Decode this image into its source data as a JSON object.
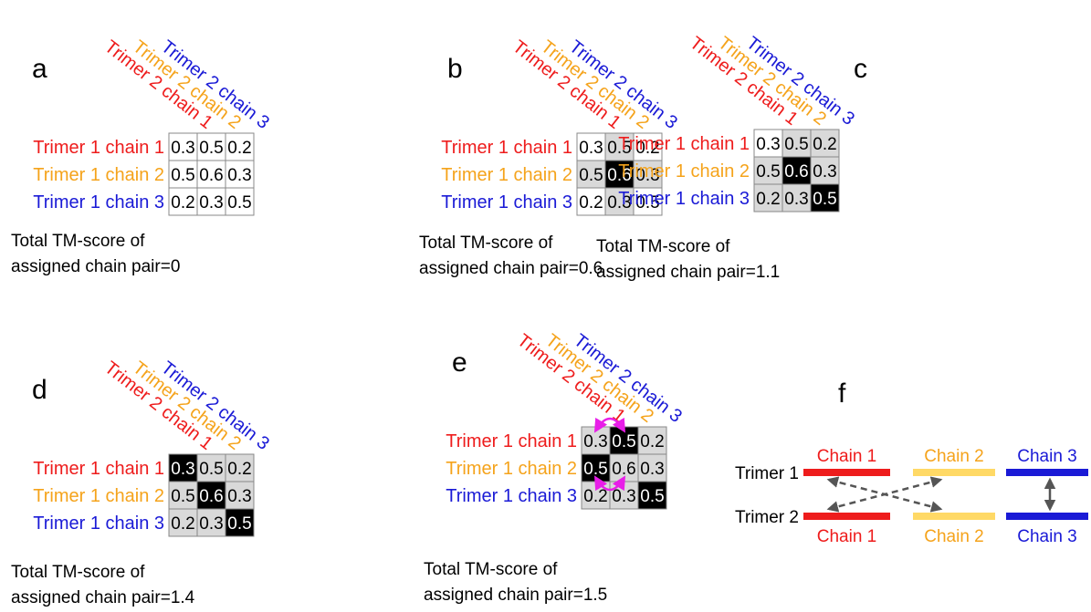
{
  "colors": [
    "#ee1c1c",
    "#f5a31b",
    "#1a1ad6"
  ],
  "panels": [
    {
      "label": "a",
      "column_headers": [
        "Trimer 2 chain 1",
        "Trimer 2 chain 2",
        "Trimer 2 chain 3"
      ],
      "row_labels": [
        "Trimer 1 chain 1",
        "Trimer 1 chain 2",
        "Trimer 1 chain 3"
      ],
      "cells": [
        [
          0.3,
          0.5,
          0.2
        ],
        [
          0.5,
          0.6,
          0.3
        ],
        [
          0.2,
          0.3,
          0.5
        ]
      ],
      "cell_colors": [
        [
          "#ffffff",
          "#ffffff",
          "#ffffff"
        ],
        [
          "#ffffff",
          "#ffffff",
          "#ffffff"
        ],
        [
          "#ffffff",
          "#ffffff",
          "#ffffff"
        ]
      ],
      "caption": [
        "Total TM-score of",
        "assigned chain pair=0"
      ]
    },
    {
      "label": "b",
      "column_headers": [
        "Trimer 2 chain 1",
        "Trimer 2 chain 2",
        "Trimer 2 chain 3"
      ],
      "row_labels": [
        "Trimer 1 chain 1",
        "Trimer 1 chain 2",
        "Trimer 1 chain 3"
      ],
      "cells": [
        [
          0.3,
          0.5,
          0.2
        ],
        [
          0.5,
          0.6,
          0.3
        ],
        [
          0.2,
          0.3,
          0.5
        ]
      ],
      "cell_colors": [
        [
          "#ffffff",
          "#d9d9d9",
          "#ffffff"
        ],
        [
          "#d9d9d9",
          "#000000",
          "#d9d9d9"
        ],
        [
          "#ffffff",
          "#d9d9d9",
          "#ffffff"
        ]
      ],
      "caption": [
        "Total TM-score of",
        "assigned chain pair=0.6"
      ]
    },
    {
      "label": "c",
      "column_headers": [
        "Trimer 2 chain 1",
        "Trimer 2 chain 2",
        "Trimer 2 chain 3"
      ],
      "row_labels": [
        "Trimer 1 chain 1",
        "Trimer 1 chain 2",
        "Trimer 1 chain 3"
      ],
      "cells": [
        [
          0.3,
          0.5,
          0.2
        ],
        [
          0.5,
          0.6,
          0.3
        ],
        [
          0.2,
          0.3,
          0.5
        ]
      ],
      "cell_colors": [
        [
          "#ffffff",
          "#d9d9d9",
          "#d9d9d9"
        ],
        [
          "#d9d9d9",
          "#000000",
          "#d9d9d9"
        ],
        [
          "#d9d9d9",
          "#d9d9d9",
          "#000000"
        ]
      ],
      "caption": [
        "Total TM-score of",
        "assigned chain pair=1.1"
      ]
    },
    {
      "label": "d",
      "column_headers": [
        "Trimer 2 chain 1",
        "Trimer 2 chain 2",
        "Trimer 2 chain 3"
      ],
      "row_labels": [
        "Trimer 1 chain 1",
        "Trimer 1 chain 2",
        "Trimer 1 chain 3"
      ],
      "cells": [
        [
          0.3,
          0.5,
          0.2
        ],
        [
          0.5,
          0.6,
          0.3
        ],
        [
          0.2,
          0.3,
          0.5
        ]
      ],
      "cell_colors": [
        [
          "#000000",
          "#d9d9d9",
          "#d9d9d9"
        ],
        [
          "#d9d9d9",
          "#000000",
          "#d9d9d9"
        ],
        [
          "#d9d9d9",
          "#d9d9d9",
          "#000000"
        ]
      ],
      "caption": [
        "Total TM-score of",
        "assigned chain pair=1.4"
      ]
    },
    {
      "label": "e",
      "column_headers": [
        "Trimer 2 chain 1",
        "Trimer 2 chain 2",
        "Trimer 2 chain 3"
      ],
      "row_labels": [
        "Trimer 1 chain 1",
        "Trimer 1 chain 2",
        "Trimer 1 chain 3"
      ],
      "cells": [
        [
          0.3,
          0.5,
          0.2
        ],
        [
          0.5,
          0.6,
          0.3
        ],
        [
          0.2,
          0.3,
          0.5
        ]
      ],
      "cell_colors": [
        [
          "#d9d9d9",
          "#000000",
          "#d9d9d9"
        ],
        [
          "#000000",
          "#d9d9d9",
          "#d9d9d9"
        ],
        [
          "#d9d9d9",
          "#d9d9d9",
          "#000000"
        ]
      ],
      "caption": [
        "Total TM-score of",
        "assigned chain pair=1.5"
      ]
    }
  ],
  "panel_f": {
    "label": "f",
    "trimers": [
      "Trimer 1",
      "Trimer 2"
    ],
    "top_chains": [
      "Chain 1",
      "Chain 2",
      "Chain 3"
    ],
    "bottom_chains": [
      "Chain 1",
      "Chain 2",
      "Chain 3"
    ],
    "bar_colors": [
      "#ee1c1c",
      "#ffd966",
      "#1a1ad6"
    ]
  }
}
